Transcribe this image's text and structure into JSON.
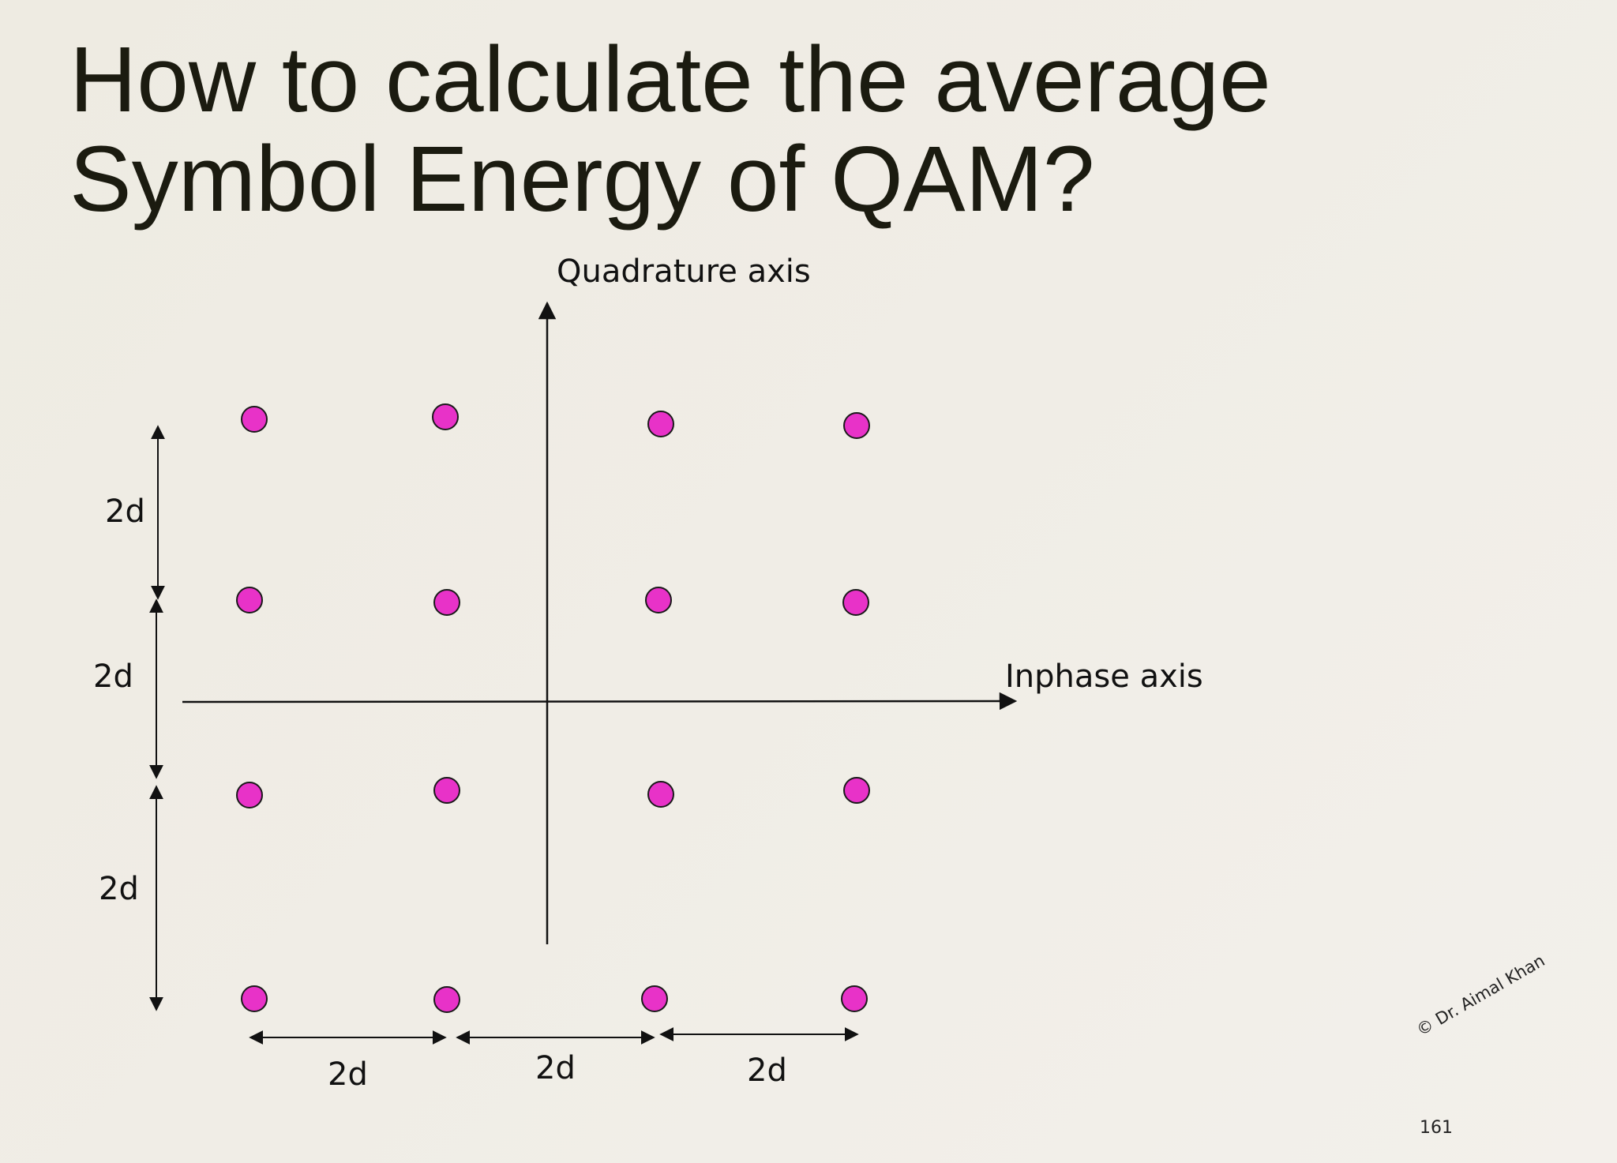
{
  "slide": {
    "title_line1": "How to calculate the average",
    "title_line2": "Symbol Energy of QAM?",
    "page_number": "161",
    "copyright": "© Dr. Aimal Khan"
  },
  "diagram": {
    "quadrature_axis_label": "Quadrature axis",
    "inphase_axis_label": "Inphase axis",
    "vertical_spacing_labels": [
      "2d",
      "2d",
      "2d"
    ],
    "horizontal_spacing_labels": [
      "2d",
      "2d",
      "2d"
    ],
    "point_color": "#e832c8",
    "point_stroke": "#1a1a1a",
    "constellation": "16-QAM",
    "points_per_side": 4
  }
}
